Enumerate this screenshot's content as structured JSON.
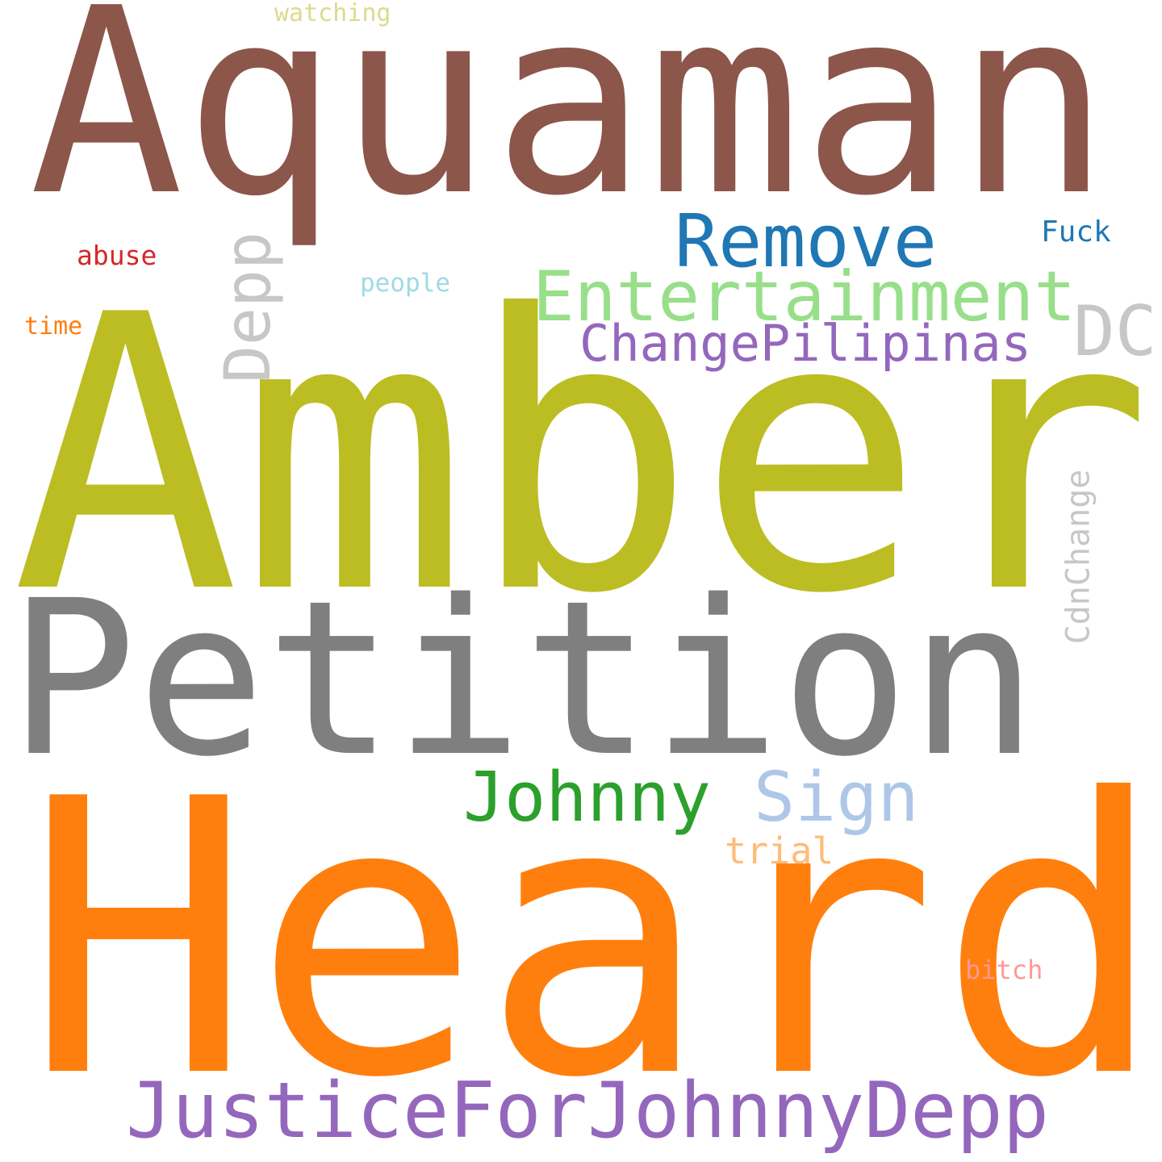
{
  "words": {
    "aquaman": {
      "text": "Aquaman",
      "color": "#8c564b",
      "orientation": "horizontal"
    },
    "amber": {
      "text": "Amber",
      "color": "#bcbd22",
      "orientation": "horizontal"
    },
    "petition": {
      "text": "Petition",
      "color": "#7f7f7f",
      "orientation": "horizontal"
    },
    "heard": {
      "text": "Heard",
      "color": "#ff7f0e",
      "orientation": "horizontal"
    },
    "remove": {
      "text": "Remove",
      "color": "#1f77b4",
      "orientation": "horizontal"
    },
    "entertainment": {
      "text": "Entertainment",
      "color": "#98df8a",
      "orientation": "horizontal"
    },
    "changepilipinas": {
      "text": "ChangePilipinas",
      "color": "#9467bd",
      "orientation": "horizontal"
    },
    "dc": {
      "text": "DC",
      "color": "#c7c7c7",
      "orientation": "horizontal"
    },
    "depp": {
      "text": "Depp",
      "color": "#c7c7c7",
      "orientation": "vertical"
    },
    "johnny": {
      "text": "Johnny",
      "color": "#2ca02c",
      "orientation": "horizontal"
    },
    "sign": {
      "text": "Sign",
      "color": "#aec7e8",
      "orientation": "horizontal"
    },
    "trial": {
      "text": "trial",
      "color": "#ffbb78",
      "orientation": "horizontal"
    },
    "justicefor": {
      "text": "JusticeForJohnnyDepp",
      "color": "#9467bd",
      "orientation": "horizontal"
    },
    "cdnchange": {
      "text": "CdnChange",
      "color": "#c7c7c7",
      "orientation": "vertical"
    },
    "fuck": {
      "text": "Fuck",
      "color": "#1f77b4",
      "orientation": "horizontal"
    },
    "abuse": {
      "text": "abuse",
      "color": "#d62728",
      "orientation": "horizontal"
    },
    "people": {
      "text": "people",
      "color": "#9edae5",
      "orientation": "horizontal"
    },
    "time": {
      "text": "time",
      "color": "#ff7f0e",
      "orientation": "horizontal"
    },
    "watching": {
      "text": "watching",
      "color": "#dbdb8d",
      "orientation": "horizontal"
    },
    "bitch": {
      "text": "bitch",
      "color": "#ff9896",
      "orientation": "horizontal"
    }
  }
}
